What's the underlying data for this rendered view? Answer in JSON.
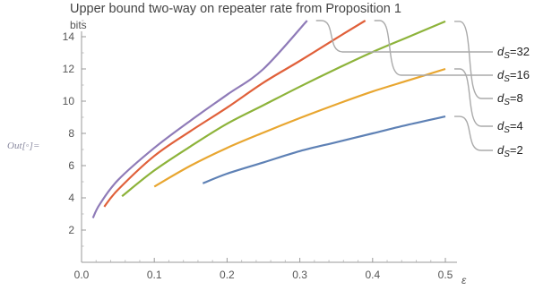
{
  "prompt_label": "Out[◦]=",
  "chart_data": {
    "type": "line",
    "title": "Upper bound two-way on repeater rate from Proposition 1",
    "xlabel": "ε",
    "ylabel": "bits",
    "xlim": [
      0,
      0.5
    ],
    "ylim": [
      0,
      15
    ],
    "x_ticks": [
      "0.0",
      "0.1",
      "0.2",
      "0.3",
      "0.4",
      "0.5"
    ],
    "y_ticks": [
      "2",
      "4",
      "6",
      "8",
      "10",
      "12",
      "14"
    ],
    "grid": false,
    "legend_placement": "right, callout labels",
    "series": [
      {
        "name": "ds=32",
        "label_var": "d",
        "label_sub": "S",
        "label_value": "=32",
        "color": "#8f7bb8",
        "points": [
          [
            0.0156,
            2.75
          ],
          [
            0.025,
            3.6
          ],
          [
            0.05,
            5.1
          ],
          [
            0.1,
            7.1
          ],
          [
            0.15,
            8.8
          ],
          [
            0.2,
            10.4
          ],
          [
            0.25,
            12.0
          ],
          [
            0.31,
            15.0
          ]
        ]
      },
      {
        "name": "ds=16",
        "label_var": "d",
        "label_sub": "S",
        "label_value": "=16",
        "color": "#e0603a",
        "points": [
          [
            0.0312,
            3.45
          ],
          [
            0.05,
            4.5
          ],
          [
            0.1,
            6.6
          ],
          [
            0.15,
            8.15
          ],
          [
            0.2,
            9.6
          ],
          [
            0.25,
            11.15
          ],
          [
            0.3,
            12.5
          ],
          [
            0.35,
            13.9
          ],
          [
            0.39,
            15.0
          ]
        ]
      },
      {
        "name": "ds=8",
        "label_var": "d",
        "label_sub": "S",
        "label_value": "=8",
        "color": "#8db33a",
        "points": [
          [
            0.0556,
            4.1
          ],
          [
            0.1,
            5.7
          ],
          [
            0.15,
            7.2
          ],
          [
            0.2,
            8.6
          ],
          [
            0.25,
            9.75
          ],
          [
            0.3,
            10.9
          ],
          [
            0.35,
            12.0
          ],
          [
            0.4,
            13.05
          ],
          [
            0.45,
            14.0
          ],
          [
            0.5,
            14.95
          ]
        ]
      },
      {
        "name": "ds=4",
        "label_var": "d",
        "label_sub": "S",
        "label_value": "=4",
        "color": "#e8a630",
        "points": [
          [
            0.1,
            4.7
          ],
          [
            0.15,
            6.0
          ],
          [
            0.2,
            7.1
          ],
          [
            0.25,
            8.05
          ],
          [
            0.3,
            8.95
          ],
          [
            0.35,
            9.8
          ],
          [
            0.4,
            10.6
          ],
          [
            0.45,
            11.3
          ],
          [
            0.5,
            12.0
          ]
        ]
      },
      {
        "name": "ds=2",
        "label_var": "d",
        "label_sub": "S",
        "label_value": "=2",
        "color": "#5e81b5",
        "points": [
          [
            0.1667,
            4.9
          ],
          [
            0.2,
            5.5
          ],
          [
            0.25,
            6.2
          ],
          [
            0.3,
            6.9
          ],
          [
            0.35,
            7.45
          ],
          [
            0.4,
            8.0
          ],
          [
            0.45,
            8.55
          ],
          [
            0.5,
            9.05
          ]
        ]
      }
    ]
  }
}
